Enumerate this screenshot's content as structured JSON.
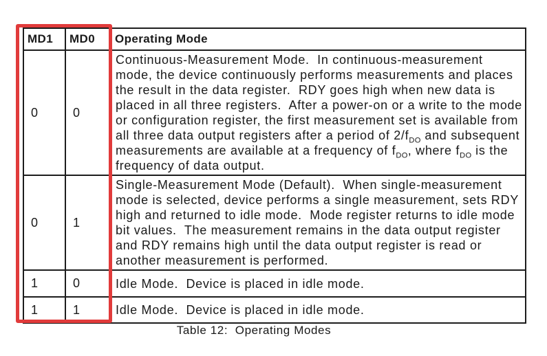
{
  "highlight": {
    "color": "#e13b3b"
  },
  "table": {
    "caption": "Table 12:  Operating Modes",
    "headers": {
      "md1": "MD1",
      "md0": "MD0",
      "mode": "Operating Mode"
    },
    "rows": [
      {
        "md1": "0",
        "md0": "0",
        "desc_parts": [
          {
            "t": "Continuous-Measurement Mode.  In continuous-measurement mode, the device continuously performs measurements and places the result in the data register.  RDY goes high when new data is placed in all three registers.  After a power-on or a write to the mode or configuration register, the first measurement set is available from all three data output registers after a period of 2/f"
          },
          {
            "t": "DO",
            "sub": true
          },
          {
            "t": " and subsequent measurements are available at a frequency of f"
          },
          {
            "t": "DO",
            "sub": true
          },
          {
            "t": ", where f"
          },
          {
            "t": "DO",
            "sub": true
          },
          {
            "t": " is the frequency of data output."
          }
        ]
      },
      {
        "md1": "0",
        "md0": "1",
        "desc_parts": [
          {
            "t": "Single-Measurement Mode (Default).  When single-measurement mode is selected, device performs a single measurement, sets RDY high and returned to idle mode.  Mode register returns to idle mode bit values.  The measurement remains in the data output register and RDY remains high until the data output register is read or another measurement is performed."
          }
        ]
      },
      {
        "md1": "1",
        "md0": "0",
        "desc_parts": [
          {
            "t": "Idle Mode.  Device is placed in idle mode."
          }
        ]
      },
      {
        "md1": "1",
        "md0": "1",
        "desc_parts": [
          {
            "t": "Idle Mode.  Device is placed in idle mode."
          }
        ]
      }
    ]
  }
}
